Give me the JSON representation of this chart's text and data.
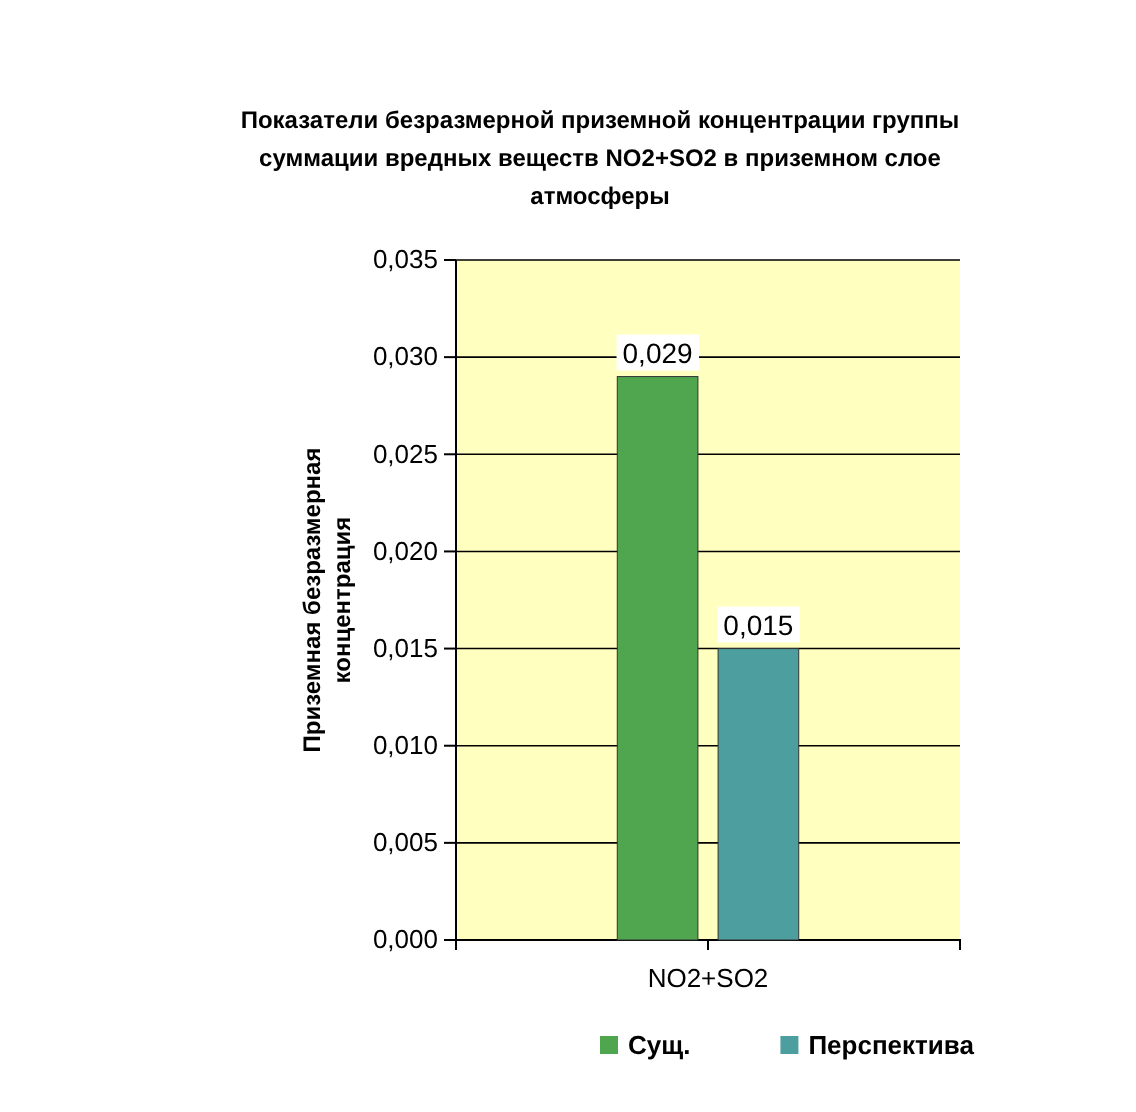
{
  "chart_data": {
    "type": "bar",
    "title": "Показатели безразмерной приземной концентрации группы суммации вредных веществ NO2+SO2 в приземном слое атмосферы",
    "ylabel": "Приземная безразмерная концентрация",
    "categories": [
      "NO2+SO2"
    ],
    "series": [
      {
        "name": "Сущ.",
        "color": "#4fa64f",
        "values": [
          0.029
        ],
        "value_labels": [
          "0,029"
        ]
      },
      {
        "name": "Перспектива",
        "color": "#4d9e9e",
        "values": [
          0.015
        ],
        "value_labels": [
          "0,015"
        ]
      }
    ],
    "ylim": [
      0,
      0.035
    ],
    "yticks": [
      {
        "value": 0,
        "label": "0,000"
      },
      {
        "value": 0.005,
        "label": "0,005"
      },
      {
        "value": 0.01,
        "label": "0,010"
      },
      {
        "value": 0.015,
        "label": "0,015"
      },
      {
        "value": 0.02,
        "label": "0,020"
      },
      {
        "value": 0.025,
        "label": "0,025"
      },
      {
        "value": 0.03,
        "label": "0,030"
      },
      {
        "value": 0.035,
        "label": "0,035"
      }
    ],
    "grid": "y",
    "legend": "bottom"
  }
}
